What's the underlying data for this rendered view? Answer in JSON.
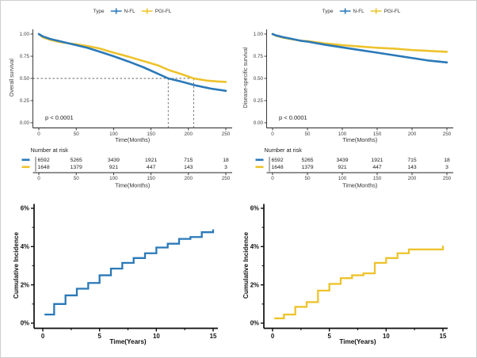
{
  "chart_data": [
    {
      "id": "overall-survival",
      "type": "line",
      "ylabel": "Overall survival",
      "xlabel": "Time(Months)",
      "xlim": [
        0,
        250
      ],
      "ylim": [
        0,
        1
      ],
      "xticks": [
        0,
        50,
        100,
        150,
        200,
        250
      ],
      "xtick_labels": [
        "0",
        "50",
        "100",
        "150",
        "200",
        "250"
      ],
      "yticks": [
        0,
        0.25,
        0.5,
        0.75,
        1
      ],
      "ytick_labels": [
        "0.00",
        "0.25",
        "0.50",
        "0.75",
        "1.00"
      ],
      "annotation": "p < 0.0001",
      "legend": {
        "title": "Type",
        "entries": [
          {
            "name": "N-FL",
            "color": "#2a79b8"
          },
          {
            "name": "PGI-FL",
            "color": "#edc32c"
          }
        ]
      },
      "median_guides": {
        "y": 0.5,
        "x": [
          173,
          207
        ]
      },
      "series": [
        {
          "name": "N-FL",
          "color": "#2a79b8",
          "x": [
            0,
            5,
            15,
            25,
            40,
            50,
            65,
            80,
            100,
            120,
            140,
            160,
            173,
            190,
            210,
            230,
            250
          ],
          "y": [
            1.0,
            0.975,
            0.945,
            0.925,
            0.895,
            0.875,
            0.845,
            0.805,
            0.75,
            0.69,
            0.625,
            0.55,
            0.5,
            0.465,
            0.42,
            0.385,
            0.36
          ]
        },
        {
          "name": "PGI-FL",
          "color": "#edc32c",
          "x": [
            0,
            5,
            15,
            25,
            40,
            50,
            65,
            80,
            100,
            120,
            140,
            160,
            175,
            190,
            207,
            225,
            240,
            250
          ],
          "y": [
            1.0,
            0.965,
            0.935,
            0.915,
            0.895,
            0.885,
            0.865,
            0.84,
            0.79,
            0.745,
            0.695,
            0.645,
            0.59,
            0.55,
            0.5,
            0.475,
            0.465,
            0.46
          ]
        }
      ],
      "risk_table": {
        "title": "Number at risk",
        "xlabel": "Time(Months)",
        "times": [
          0,
          50,
          100,
          150,
          200,
          250
        ],
        "rows": [
          {
            "name": "N-FL",
            "color": "#2a79b8",
            "counts": [
              "6592",
              "5265",
              "3439",
              "1921",
              "715",
              "18"
            ]
          },
          {
            "name": "PGI-FL",
            "color": "#edc32c",
            "counts": [
              "1648",
              "1379",
              "921",
              "447",
              "143",
              "3"
            ]
          }
        ]
      }
    },
    {
      "id": "disease-specific-survival",
      "type": "line",
      "ylabel": "Disease-specific survival",
      "xlabel": "Time(Months)",
      "xlim": [
        0,
        250
      ],
      "ylim": [
        0,
        1
      ],
      "xticks": [
        0,
        50,
        100,
        150,
        200,
        250
      ],
      "xtick_labels": [
        "0",
        "50",
        "100",
        "150",
        "200",
        "250"
      ],
      "yticks": [
        0,
        0.25,
        0.5,
        0.75,
        1
      ],
      "ytick_labels": [
        "0.00",
        "0.25",
        "0.50",
        "0.75",
        "1.00"
      ],
      "annotation": "p < 0.0001",
      "legend": {
        "title": "Type",
        "entries": [
          {
            "name": "N-FL",
            "color": "#2a79b8"
          },
          {
            "name": "PGI-FL",
            "color": "#edc32c"
          }
        ]
      },
      "series": [
        {
          "name": "N-FL",
          "color": "#2a79b8",
          "x": [
            0,
            5,
            15,
            25,
            40,
            50,
            75,
            100,
            125,
            150,
            175,
            200,
            225,
            250
          ],
          "y": [
            1.0,
            0.985,
            0.965,
            0.95,
            0.925,
            0.915,
            0.88,
            0.85,
            0.82,
            0.79,
            0.76,
            0.73,
            0.7,
            0.68
          ]
        },
        {
          "name": "PGI-FL",
          "color": "#edc32c",
          "x": [
            0,
            5,
            15,
            25,
            40,
            50,
            75,
            100,
            125,
            150,
            175,
            200,
            225,
            250
          ],
          "y": [
            1.0,
            0.98,
            0.96,
            0.945,
            0.925,
            0.92,
            0.895,
            0.875,
            0.86,
            0.845,
            0.835,
            0.82,
            0.81,
            0.8
          ]
        }
      ],
      "risk_table": {
        "title": "Number at risk",
        "xlabel": "Time(Months)",
        "times": [
          0,
          50,
          100,
          150,
          200,
          250
        ],
        "rows": [
          {
            "name": "N-FL",
            "color": "#2a79b8",
            "counts": [
              "6592",
              "5265",
              "3439",
              "1921",
              "715",
              "18"
            ]
          },
          {
            "name": "PGI-FL",
            "color": "#edc32c",
            "counts": [
              "1648",
              "1379",
              "921",
              "447",
              "143",
              "3"
            ]
          }
        ]
      }
    },
    {
      "id": "cumulative-incidence-n-fl",
      "type": "step",
      "ylabel": "Cumulative Incidence",
      "xlabel": "Time(Years)",
      "color": "#2a79b8",
      "xlim": [
        0,
        15
      ],
      "ylim": [
        0,
        6
      ],
      "xticks": [
        0,
        5,
        10,
        15
      ],
      "xtick_labels": [
        "0",
        "5",
        "10",
        "15"
      ],
      "xticks_minor": [
        2.5,
        7.5,
        12.5
      ],
      "yticks": [
        0,
        2,
        4,
        6
      ],
      "ytick_labels": [
        "0%",
        "2%",
        "4%",
        "6%"
      ],
      "yticks_minor": [
        1,
        3,
        5
      ],
      "x": [
        0.15,
        1,
        2,
        3,
        4,
        5,
        6,
        7,
        8,
        9,
        10,
        11,
        12,
        13,
        14,
        15
      ],
      "y": [
        0.45,
        1.0,
        1.45,
        1.8,
        2.1,
        2.5,
        2.85,
        3.15,
        3.4,
        3.65,
        3.95,
        4.15,
        4.4,
        4.5,
        4.75,
        4.9
      ]
    },
    {
      "id": "cumulative-incidence-pgi-fl",
      "type": "step",
      "ylabel": "Cumulative Incidence",
      "xlabel": "Time(Years)",
      "color": "#edc32c",
      "xlim": [
        0,
        15
      ],
      "ylim": [
        0,
        6
      ],
      "xticks": [
        0,
        5,
        10,
        15
      ],
      "xtick_labels": [
        "0",
        "5",
        "10",
        "15"
      ],
      "xticks_minor": [
        2.5,
        7.5,
        12.5
      ],
      "yticks": [
        0,
        2,
        4,
        6
      ],
      "ytick_labels": [
        "0%",
        "2%",
        "4%",
        "6%"
      ],
      "yticks_minor": [
        1,
        3,
        5
      ],
      "x": [
        0.15,
        1,
        2,
        3,
        4,
        5,
        6,
        7,
        8,
        9,
        10,
        11,
        12,
        13,
        14,
        15
      ],
      "y": [
        0.25,
        0.45,
        0.85,
        1.1,
        1.7,
        2.05,
        2.35,
        2.5,
        2.6,
        3.15,
        3.4,
        3.65,
        3.85,
        3.85,
        3.85,
        4.05
      ]
    }
  ]
}
